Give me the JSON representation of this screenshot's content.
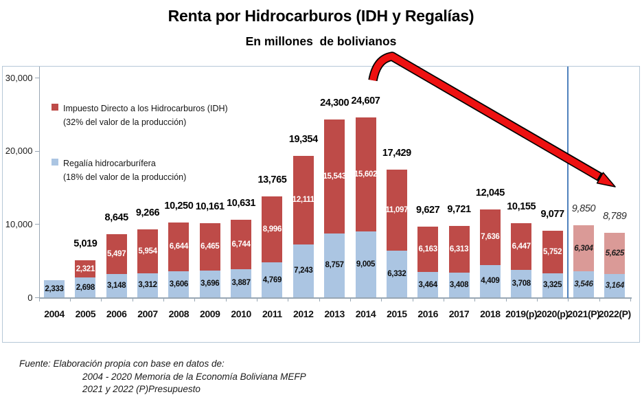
{
  "title": "Renta por Hidrocarburos (IDH y Regalías)",
  "subtitle": "En millones  de bolivianos",
  "legend": {
    "idh": {
      "label": "Impuesto Directo a los Hidrocarburos (IDH)",
      "sublabel": "(32% del valor de la producción)"
    },
    "regalia": {
      "label": "Regalía hidrocarburífera",
      "sublabel": "(18% del valor de la producción)"
    }
  },
  "colors": {
    "idh": "#be4b48",
    "idh_projected": "#da9a97",
    "regalia": "#abc5e2",
    "regalia_projected": "#abc5e2",
    "divider_line": "#4f81bd",
    "arrow_red": "#ee1111",
    "axis": "#98a6b3",
    "frame": "#b5c7d7"
  },
  "chart_data": {
    "type": "bar",
    "stacked": true,
    "title": "Renta por Hidrocarburos (IDH y Regalías)",
    "subtitle": "En millones  de bolivianos",
    "categories": [
      "2004",
      "2005",
      "2006",
      "2007",
      "2008",
      "2009",
      "2010",
      "2011",
      "2012",
      "2013",
      "2014",
      "2015",
      "2016",
      "2017",
      "2018",
      "2019(p)",
      "2020(p)",
      "2021(P)",
      "2022(P)"
    ],
    "series": [
      {
        "name": "Regalía hidrocarburífera (18% del valor de la producción)",
        "values": [
          2333,
          2698,
          3148,
          3312,
          3606,
          3696,
          3887,
          4769,
          7243,
          8757,
          9005,
          6332,
          3464,
          3408,
          4409,
          3708,
          3325,
          3546,
          3164
        ]
      },
      {
        "name": "Impuesto Directo a los Hidrocarburos (IDH) (32% del valor de la producción)",
        "values": [
          0,
          2321,
          5497,
          5954,
          6644,
          6465,
          6744,
          8996,
          12111,
          15543,
          15602,
          11097,
          6163,
          6313,
          7636,
          6447,
          5752,
          6304,
          5625
        ]
      }
    ],
    "totals": [
      null,
      5019,
      8645,
      9266,
      10250,
      10161,
      10631,
      13765,
      19354,
      24300,
      24607,
      17429,
      9627,
      9721,
      12045,
      10155,
      9077,
      9850,
      8789
    ],
    "projected_categories": [
      "2021(P)",
      "2022(P)"
    ],
    "ylabel": "",
    "ylim": [
      0,
      30000
    ],
    "ytick_values": [
      0,
      10000,
      20000,
      30000
    ],
    "ytick_labels": [
      "0",
      "10,000",
      "20,000",
      "30,000"
    ],
    "grid": false,
    "legend_position": "upper-left-inside",
    "annotations": [
      "red declining arrow from 2014 peak toward 2022",
      "blue vertical divider line before 2021(P)"
    ]
  },
  "footer": {
    "line1": "Fuente: Elaboración propia con base en datos de:",
    "line2": "2004 - 2020 Memoria de la Economía Boliviana MEFP",
    "line3": "2021 y 2022 (P)Presupuesto"
  }
}
